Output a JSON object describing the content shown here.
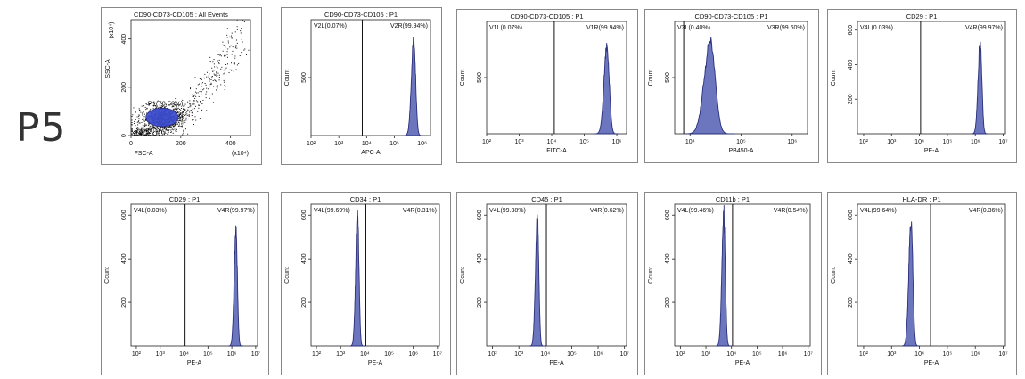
{
  "sample_label": "P5",
  "colors": {
    "fill": "#6b76bf",
    "stroke": "#2a2f78",
    "gate": "#2a2f8a",
    "dots": "#111111",
    "frame": "#888888"
  },
  "chart_data": [
    {
      "type": "scatter",
      "title": "CD90-CD73-CD105 : All Events",
      "xlabel": "FSC-A",
      "ylabel": "SSC-A",
      "x_ticks": [
        "0",
        "200",
        "400"
      ],
      "x_tick_values": [
        0,
        200,
        400
      ],
      "x_unit": "(x10⁴)",
      "y_ticks": [
        "0",
        "200",
        "400"
      ],
      "y_tick_values": [
        0,
        200,
        400
      ],
      "y_unit": "(x10⁴)",
      "xlim": [
        0,
        480
      ],
      "ylim": [
        0,
        480
      ],
      "gate": {
        "label": "P1(70.58%)",
        "center": [
          125,
          75
        ],
        "radii": [
          65,
          38
        ]
      }
    },
    {
      "type": "histogram",
      "title": "CD90-CD73-CD105 : P1",
      "xlabel": "APC-A",
      "ylabel": "Count",
      "x_scale": "log",
      "x_ticks": [
        "10²",
        "10³",
        "10⁴",
        "10⁵",
        "10⁶"
      ],
      "x_tick_values": [
        100,
        1000,
        10000,
        100000,
        1000000
      ],
      "xlim": [
        100,
        2000000
      ],
      "y_ticks": [
        "500"
      ],
      "y_tick_values": [
        500
      ],
      "ylim": [
        0,
        1000
      ],
      "gate_x": 7000,
      "left_label": "V2L(0.07%)",
      "right_label": "V2R(99.94%)",
      "peak": 500000,
      "peak_height": 820,
      "sigma": 0.085
    },
    {
      "type": "histogram",
      "title": "CD90-CD73-CD105 : P1",
      "xlabel": "FITC-A",
      "ylabel": "Count",
      "x_scale": "log",
      "x_ticks": [
        "10²",
        "10³",
        "10⁴",
        "10⁵",
        "10⁶"
      ],
      "x_tick_values": [
        100,
        1000,
        10000,
        100000,
        1000000
      ],
      "xlim": [
        100,
        2000000
      ],
      "y_ticks": [
        "500"
      ],
      "y_tick_values": [
        500
      ],
      "ylim": [
        0,
        1000
      ],
      "gate_x": 12000,
      "left_label": "V1L(0.07%)",
      "right_label": "V1R(99.94%)",
      "peak": 500000,
      "peak_height": 790,
      "sigma": 0.09
    },
    {
      "type": "histogram",
      "title": "CD90-CD73-CD105 : P1",
      "xlabel": "PB450-A",
      "ylabel": "Count",
      "x_scale": "log",
      "x_ticks": [
        "10⁴",
        "10⁵",
        "10⁶"
      ],
      "x_tick_values": [
        10000,
        100000,
        1000000
      ],
      "xlim": [
        5000,
        2000000
      ],
      "y_ticks": [
        "500"
      ],
      "y_tick_values": [
        500
      ],
      "ylim": [
        0,
        1000
      ],
      "gate_x": 7500,
      "left_label": "V3L(0.40%)",
      "right_label": "V3R(99.60%)",
      "peak": 25000,
      "peak_height": 820,
      "sigma": 0.12
    },
    {
      "type": "histogram",
      "title": "CD29 : P1",
      "xlabel": "PE-A",
      "ylabel": "Count",
      "x_scale": "log",
      "x_ticks": [
        "10²",
        "10³",
        "10⁴",
        "10⁵",
        "10⁶",
        "10⁷"
      ],
      "x_tick_values": [
        100,
        1000,
        10000,
        100000,
        1000000,
        10000000
      ],
      "xlim": [
        60,
        12000000
      ],
      "y_ticks": [
        "200",
        "400",
        "600"
      ],
      "y_tick_values": [
        200,
        400,
        600
      ],
      "ylim": [
        0,
        650
      ],
      "gate_x": 11000,
      "left_label": "V4L(0.03%)",
      "right_label": "V4R(99.97%)",
      "peak": 1500000,
      "peak_height": 530,
      "sigma": 0.075
    },
    {
      "type": "histogram",
      "title": "CD29 : P1",
      "xlabel": "PE-A",
      "ylabel": "Count",
      "x_scale": "log",
      "x_ticks": [
        "10²",
        "10³",
        "10⁴",
        "10⁵",
        "10⁶",
        "10⁷"
      ],
      "x_tick_values": [
        100,
        1000,
        10000,
        100000,
        1000000,
        10000000
      ],
      "xlim": [
        60,
        12000000
      ],
      "y_ticks": [
        "200",
        "400",
        "600"
      ],
      "y_tick_values": [
        200,
        400,
        600
      ],
      "ylim": [
        0,
        650
      ],
      "gate_x": 11000,
      "left_label": "V4L(0.03%)",
      "right_label": "V4R(99.97%)",
      "peak": 1500000,
      "peak_height": 530,
      "sigma": 0.075
    },
    {
      "type": "histogram",
      "title": "CD34 : P1",
      "xlabel": "PE-A",
      "ylabel": "Count",
      "x_scale": "log",
      "x_ticks": [
        "10²",
        "10³",
        "10⁴",
        "10⁵",
        "10⁶",
        "10⁷"
      ],
      "x_tick_values": [
        100,
        1000,
        10000,
        100000,
        1000000,
        10000000
      ],
      "xlim": [
        60,
        12000000
      ],
      "y_ticks": [
        "200",
        "400",
        "600"
      ],
      "y_tick_values": [
        200,
        400,
        600
      ],
      "ylim": [
        0,
        650
      ],
      "gate_x": 11000,
      "left_label": "V4L(99.69%)",
      "right_label": "V4R(0.31%)",
      "peak": 5000,
      "peak_height": 600,
      "sigma": 0.075
    },
    {
      "type": "histogram",
      "title": "CD45 : P1",
      "xlabel": "PE-A",
      "ylabel": "Count",
      "x_scale": "log",
      "x_ticks": [
        "10²",
        "10³",
        "10⁴",
        "10⁵",
        "10⁶",
        "10⁷"
      ],
      "x_tick_values": [
        100,
        1000,
        10000,
        100000,
        1000000,
        10000000
      ],
      "xlim": [
        60,
        12000000
      ],
      "y_ticks": [
        "200",
        "400",
        "600"
      ],
      "y_tick_values": [
        200,
        400,
        600
      ],
      "ylim": [
        0,
        650
      ],
      "gate_x": 11000,
      "left_label": "V4L(99.38%)",
      "right_label": "V4R(0.62%)",
      "peak": 5000,
      "peak_height": 590,
      "sigma": 0.07
    },
    {
      "type": "histogram",
      "title": "CD11b : P1",
      "xlabel": "PE-A",
      "ylabel": "Count",
      "x_scale": "log",
      "x_ticks": [
        "10²",
        "10³",
        "10⁴",
        "10⁵",
        "10⁶",
        "10⁷"
      ],
      "x_tick_values": [
        100,
        1000,
        10000,
        100000,
        1000000,
        10000000
      ],
      "xlim": [
        60,
        12000000
      ],
      "y_ticks": [
        "200",
        "400",
        "600"
      ],
      "y_tick_values": [
        200,
        400,
        600
      ],
      "ylim": [
        0,
        650
      ],
      "gate_x": 11000,
      "left_label": "V4L(99.46%)",
      "right_label": "V4R(0.54%)",
      "peak": 5000,
      "peak_height": 590,
      "sigma": 0.075
    },
    {
      "type": "histogram",
      "title": "HLA-DR : P1",
      "xlabel": "PE-A",
      "ylabel": "Count",
      "x_scale": "log",
      "x_ticks": [
        "10²",
        "10³",
        "10⁴",
        "10⁵",
        "10⁶",
        "10⁷"
      ],
      "x_tick_values": [
        100,
        1000,
        10000,
        100000,
        1000000,
        10000000
      ],
      "xlim": [
        60,
        12000000
      ],
      "y_ticks": [
        "200",
        "400",
        "600"
      ],
      "y_tick_values": [
        200,
        400,
        600
      ],
      "ylim": [
        0,
        650
      ],
      "gate_x": 25000,
      "left_label": "V4L(99.64%)",
      "right_label": "V4R(0.36%)",
      "peak": 5000,
      "peak_height": 580,
      "sigma": 0.08
    }
  ]
}
